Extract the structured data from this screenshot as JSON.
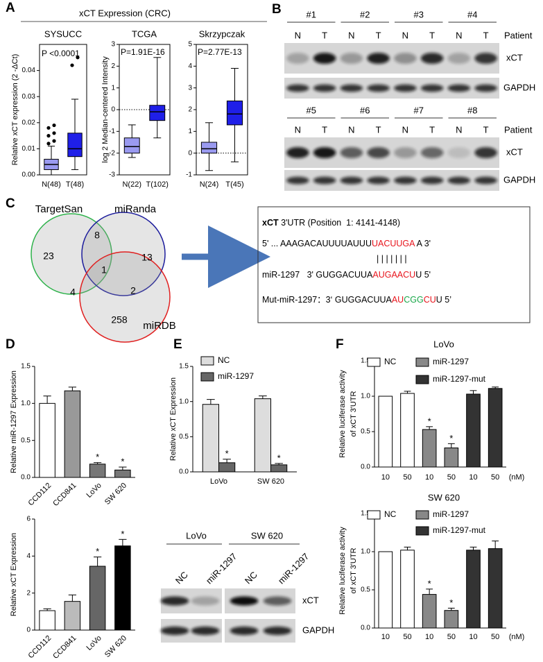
{
  "panels": {
    "a": "A",
    "b": "B",
    "c": "C",
    "d": "D",
    "e": "E",
    "f": "F"
  },
  "panel_a_title": "xCT Expression (CRC)",
  "chart_data": [
    {
      "type": "box",
      "title": "SYSUCC",
      "ylabel": "Relative xCT expression (2 -ΔCt)",
      "annotation": "P <0.0001",
      "categories": [
        "N(48)",
        "T(48)"
      ],
      "colors": [
        "#9a9af0",
        "#1f1fe8"
      ],
      "boxes": [
        {
          "whislo": 0,
          "q1": 0.002,
          "med": 0.004,
          "q3": 0.006,
          "whishi": 0.011,
          "fliers": [
            0.012,
            0.013,
            0.015,
            0.016,
            0.018,
            0.019
          ]
        },
        {
          "whislo": 0.002,
          "q1": 0.007,
          "med": 0.01,
          "q3": 0.016,
          "whishi": 0.029,
          "fliers": [
            0.042,
            0.045
          ]
        }
      ],
      "ylim": [
        0,
        0.05
      ],
      "yticks": [
        {
          "value": 0,
          "label": "0.00"
        },
        0.01,
        0.02,
        0.03,
        0.04
      ]
    },
    {
      "type": "box",
      "title": "TCGA",
      "ylabel": "log 2 Median-centered Intensity",
      "annotation": "P=1.91E-16",
      "categories": [
        "N(22)",
        "T(102)"
      ],
      "colors": [
        "#9a9af0",
        "#1f1fe8"
      ],
      "boxes": [
        {
          "whislo": -2.2,
          "q1": -2,
          "med": -1.7,
          "q3": -1.3,
          "whishi": -0.7,
          "fliers": []
        },
        {
          "whislo": -1.3,
          "q1": -0.5,
          "med": -0.1,
          "q3": 0.2,
          "whishi": 2.4,
          "fliers": []
        }
      ],
      "ylim": [
        -3,
        3
      ],
      "yticks": [
        -3,
        -2,
        -1,
        0,
        1,
        2,
        3
      ],
      "reference_line": 0
    },
    {
      "type": "box",
      "title": "Skrzypczak",
      "annotation": "P=2.77E-13",
      "categories": [
        "N(24)",
        "T(45)"
      ],
      "colors": [
        "#9a9af0",
        "#1f1fe8"
      ],
      "boxes": [
        {
          "whislo": -0.8,
          "q1": 0,
          "med": 0.2,
          "q3": 0.5,
          "whishi": 1.4,
          "fliers": []
        },
        {
          "whislo": -0.4,
          "q1": 1.3,
          "med": 1.8,
          "q3": 2.4,
          "whishi": 3.9,
          "fliers": []
        }
      ],
      "ylim": [
        -1,
        5
      ],
      "yticks": [
        -1,
        0,
        1,
        2,
        3,
        4,
        5
      ],
      "reference_line": 0
    },
    {
      "type": "bar",
      "ylabel": "Relative miR-1297 Expression",
      "categories": [
        "CCD112",
        "CCD841",
        "LoVo",
        "SW 620"
      ],
      "values": [
        1,
        1.17,
        0.18,
        0.1
      ],
      "errors": [
        0.1,
        0.05,
        0.02,
        0.04
      ],
      "colors": [
        "#ffffff",
        "#999999",
        "#777777",
        "#777777"
      ],
      "significance": [
        null,
        null,
        "*",
        "*"
      ],
      "ylim": [
        0,
        1.5
      ],
      "yticks": [
        {
          "value": 0,
          "label": "0.0"
        },
        0.5,
        {
          "value": 1,
          "label": "1.0"
        },
        1.5
      ]
    },
    {
      "type": "bar",
      "ylabel": "Relative xCT Expression",
      "categories": [
        "CCD112",
        "CCD841",
        "LoVo",
        "SW 620"
      ],
      "values": [
        1.05,
        1.55,
        3.45,
        4.55
      ],
      "errors": [
        0.1,
        0.35,
        0.5,
        0.35
      ],
      "colors": [
        "#ffffff",
        "#bbbbbb",
        "#666666",
        "#000000"
      ],
      "significance": [
        null,
        null,
        "*",
        "*"
      ],
      "ylim": [
        0,
        6
      ],
      "yticks": [
        0,
        2,
        4,
        6
      ]
    },
    {
      "type": "bar",
      "ylabel": "Relative xCT Expression",
      "categories": [
        "LoVo",
        "SW 620"
      ],
      "series": [
        {
          "name": "NC",
          "color": "#dddddd",
          "values": [
            0.96,
            1.04
          ],
          "errors": [
            0.07,
            0.04
          ]
        },
        {
          "name": "miR-1297",
          "color": "#666666",
          "values": [
            0.13,
            0.1
          ],
          "errors": [
            0.05,
            0.02
          ],
          "significance": [
            "*",
            "*"
          ]
        }
      ],
      "ylim": [
        0,
        1.5
      ],
      "yticks": [
        {
          "value": 0,
          "label": "0.0"
        },
        0.5,
        {
          "value": 1,
          "label": "1.0"
        },
        1.5
      ]
    },
    {
      "type": "bar",
      "title": "LoVo",
      "ylabel": [
        "Relative luciferase activity",
        "of xCT 3'UTR"
      ],
      "x_unit": "(nM)",
      "categories": [
        "10",
        "50",
        "10",
        "50",
        "10",
        "50"
      ],
      "series": [
        {
          "name": "NC",
          "color": "#ffffff",
          "values": [
            1,
            1.04,
            null,
            null,
            null,
            null
          ],
          "errors": [
            0,
            0.03,
            null,
            null,
            null,
            null
          ]
        },
        {
          "name": "miR-1297",
          "color": "#888888",
          "values": [
            null,
            null,
            0.53,
            0.27,
            null,
            null
          ],
          "errors": [
            null,
            null,
            0.04,
            0.06,
            null,
            null
          ],
          "significance": [
            null,
            null,
            "*",
            "*",
            null,
            null
          ]
        },
        {
          "name": "miR-1297-mut",
          "color": "#333333",
          "values": [
            null,
            null,
            null,
            null,
            1.03,
            1.11
          ],
          "errors": [
            null,
            null,
            null,
            null,
            0.05,
            0.02
          ]
        }
      ],
      "ylim": [
        0,
        1.5
      ],
      "yticks": [
        {
          "value": 0,
          "label": "0.0"
        },
        0.5,
        {
          "value": 1,
          "label": "1.0"
        },
        1.5
      ]
    },
    {
      "type": "bar",
      "title": "SW 620",
      "ylabel": [
        "Relative luciferase activity",
        "of xCT 3'UTR"
      ],
      "x_unit": "(nM)",
      "categories": [
        "10",
        "50",
        "10",
        "50",
        "10",
        "50"
      ],
      "series": [
        {
          "name": "NC",
          "color": "#ffffff",
          "values": [
            1,
            1.02,
            null,
            null,
            null,
            null
          ],
          "errors": [
            0,
            0.04,
            null,
            null,
            null,
            null
          ]
        },
        {
          "name": "miR-1297",
          "color": "#888888",
          "values": [
            null,
            null,
            0.44,
            0.23,
            null,
            null
          ],
          "errors": [
            null,
            null,
            0.07,
            0.03,
            null,
            null
          ],
          "significance": [
            null,
            null,
            "*",
            "*",
            null,
            null
          ]
        },
        {
          "name": "miR-1297-mut",
          "color": "#333333",
          "values": [
            null,
            null,
            null,
            null,
            1.02,
            1.04
          ],
          "errors": [
            null,
            null,
            null,
            null,
            0.04,
            0.1
          ]
        }
      ],
      "ylim": [
        0,
        1.5
      ],
      "yticks": [
        {
          "value": 0,
          "label": "0.0"
        },
        0.5,
        {
          "value": 1,
          "label": "1.0"
        },
        1.5
      ]
    }
  ],
  "blot_b": {
    "rows": [
      [
        "#1",
        "#2",
        "#3",
        "#4"
      ],
      [
        "#5",
        "#6",
        "#7",
        "#8"
      ]
    ],
    "lane_labels": [
      "N",
      "T"
    ],
    "patient_label": "Patient",
    "proteins": [
      "xCT",
      "GAPDH"
    ]
  },
  "venn": {
    "sets": [
      {
        "name": "TargetSan",
        "color": "#2db24a"
      },
      {
        "name": "miRanda",
        "color": "#1c1c9c"
      },
      {
        "name": "miRDB",
        "color": "#e02020"
      }
    ],
    "regions": [
      23,
      8,
      13,
      1,
      4,
      2,
      258
    ]
  },
  "sequence": {
    "title": [
      {
        "text": "xCT",
        "bold": true
      },
      {
        "text": " 3'UTR (Position  1: 4141-4148)"
      }
    ],
    "lines": [
      [
        {
          "text": "5' ... AAAGACAUUUUAUUU",
          "color": "#000000"
        },
        {
          "text": "UACUUGA",
          "color": "#e8141c"
        },
        {
          "text": " A 3'",
          "color": "#000000"
        }
      ],
      [
        {
          "text": "| | | | | | |",
          "color": "#000000"
        }
      ],
      [
        {
          "text": "miR-1297   3' GUGGACUUA",
          "color": "#000000"
        },
        {
          "text": "AUGAACU",
          "color": "#e8141c"
        },
        {
          "text": "U 5'",
          "color": "#000000"
        }
      ],
      [
        {
          "text": "Mut-miR-1297：3‘ GUGGACUUA",
          "color": "#000000"
        },
        {
          "text": "AU",
          "color": "#e8141c"
        },
        {
          "text": "CGG",
          "color": "#1aa84a"
        },
        {
          "text": "CU",
          "color": "#e8141c"
        },
        {
          "text": "U 5’",
          "color": "#000000"
        }
      ]
    ]
  },
  "blot_e": {
    "groups": [
      "LoVo",
      "SW 620"
    ],
    "lanes": [
      "NC",
      "miR-1297"
    ],
    "proteins": [
      "xCT",
      "GAPDH"
    ]
  }
}
